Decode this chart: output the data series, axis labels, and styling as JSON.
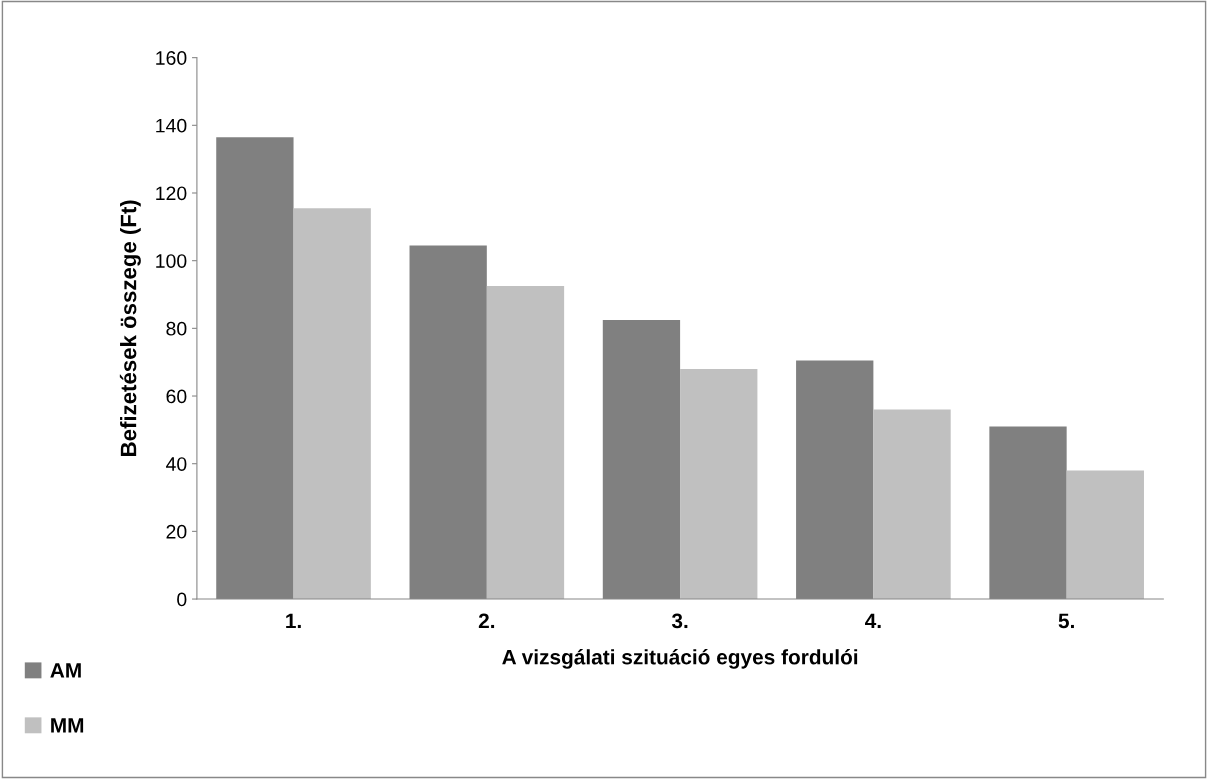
{
  "chart_data": {
    "type": "bar",
    "xlabel": "A vizsgálati szituáció egyes fordulói",
    "ylabel": "Befizetések összege (Ft)",
    "categories": [
      "1.",
      "2.",
      "3.",
      "4.",
      "5."
    ],
    "series": [
      {
        "name": "AM",
        "color": "#808080",
        "values": [
          136.5,
          104.5,
          82.5,
          70.5,
          51
        ]
      },
      {
        "name": "MM",
        "color": "#c0c0c0",
        "values": [
          115.5,
          92.5,
          68,
          56,
          38
        ]
      }
    ],
    "ylim": [
      0,
      160
    ],
    "yticks": [
      0,
      20,
      40,
      60,
      80,
      100,
      120,
      140,
      160
    ],
    "grid": false,
    "legend": "bottom left"
  }
}
